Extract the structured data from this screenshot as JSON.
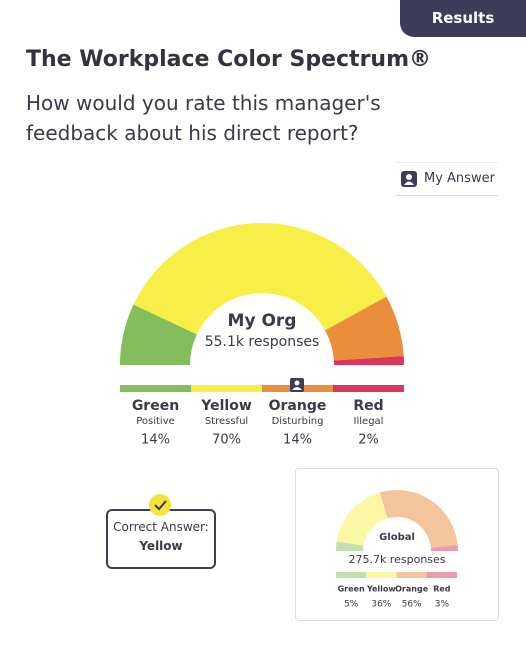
{
  "tab": "Results",
  "title": "The Workplace Color Spectrum®",
  "question": "How would you rate this manager's feedback about his direct report?",
  "my_answer": "My Answer",
  "correct_answer": {
    "label": "Correct Answer:",
    "value": "Yellow"
  },
  "chart_data": [
    {
      "type": "gauge",
      "title": "My Org",
      "subtitle": "55.1k responses",
      "categories": [
        "Green",
        "Yellow",
        "Orange",
        "Red"
      ],
      "descriptions": [
        "Positive",
        "Stressful",
        "Disturbing",
        "Illegal"
      ],
      "values": [
        14,
        70,
        14,
        2
      ],
      "value_labels": [
        "14%",
        "70%",
        "14%",
        "2%"
      ],
      "colors": [
        "#84bd5c",
        "#f7ef48",
        "#eb8e3c",
        "#d9365e"
      ]
    },
    {
      "type": "gauge",
      "title": "Global",
      "subtitle": "275.7k responses",
      "categories": [
        "Green",
        "Yellow",
        "Orange",
        "Red"
      ],
      "values": [
        5,
        36,
        56,
        3
      ],
      "value_labels": [
        "5%",
        "36%",
        "56%",
        "3%"
      ],
      "colors": [
        "#c2dfae",
        "#fbf7a4",
        "#f4c49c",
        "#ec9aae"
      ]
    }
  ]
}
